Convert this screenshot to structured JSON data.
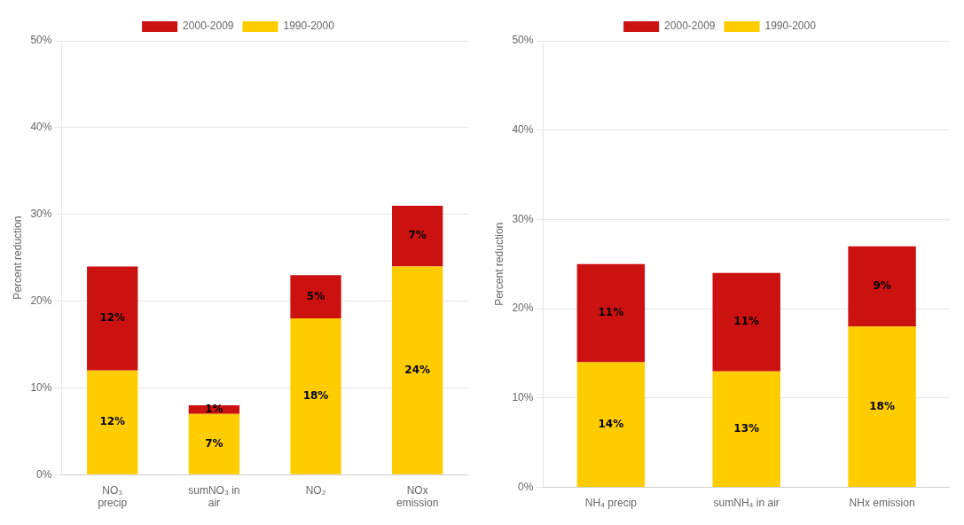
{
  "chart_data": [
    {
      "type": "bar",
      "stacked": true,
      "grid": true,
      "legend": "top",
      "data_labels": true,
      "y_label": "Percent reduction",
      "categories": [
        "NO₃\nprecip",
        "sumNO₃ in\nair",
        "NO₂",
        "NOx\nemission"
      ],
      "series": [
        {
          "name": "1990-2000",
          "color": "#FFCC00",
          "values": [
            12,
            7,
            18,
            24
          ],
          "value_labels": [
            "12%",
            "7%",
            "18%",
            "24%"
          ]
        },
        {
          "name": "2000-2009",
          "color": "#CC1111",
          "values": [
            12,
            1,
            5,
            7
          ],
          "value_labels": [
            "12%",
            "1%",
            "5%",
            "7%"
          ]
        }
      ],
      "ylim": [
        0,
        50
      ],
      "yticks": [
        {
          "value": 0,
          "label": "0%"
        },
        {
          "value": 10,
          "label": "10%"
        },
        {
          "value": 20,
          "label": "20%"
        },
        {
          "value": 30,
          "label": "30%"
        },
        {
          "value": 40,
          "label": "40%"
        },
        {
          "value": 50,
          "label": "50%"
        }
      ]
    },
    {
      "type": "bar",
      "stacked": true,
      "grid": true,
      "legend": "top",
      "data_labels": true,
      "y_label": "Percent reduction",
      "categories": [
        "NH₄ precip",
        "sumNH₄ in air",
        "NHx emission"
      ],
      "series": [
        {
          "name": "1990-2000",
          "color": "#FFCC00",
          "values": [
            14,
            13,
            18
          ],
          "value_labels": [
            "14%",
            "13%",
            "18%"
          ]
        },
        {
          "name": "2000-2009",
          "color": "#CC1111",
          "values": [
            11,
            11,
            9
          ],
          "value_labels": [
            "11%",
            "11%",
            "9%"
          ]
        }
      ],
      "ylim": [
        0,
        50
      ],
      "yticks": [
        {
          "value": 0,
          "label": "0%"
        },
        {
          "value": 10,
          "label": "10%"
        },
        {
          "value": 20,
          "label": "20%"
        },
        {
          "value": 30,
          "label": "30%"
        },
        {
          "value": 40,
          "label": "40%"
        },
        {
          "value": 50,
          "label": "50%"
        }
      ]
    }
  ]
}
